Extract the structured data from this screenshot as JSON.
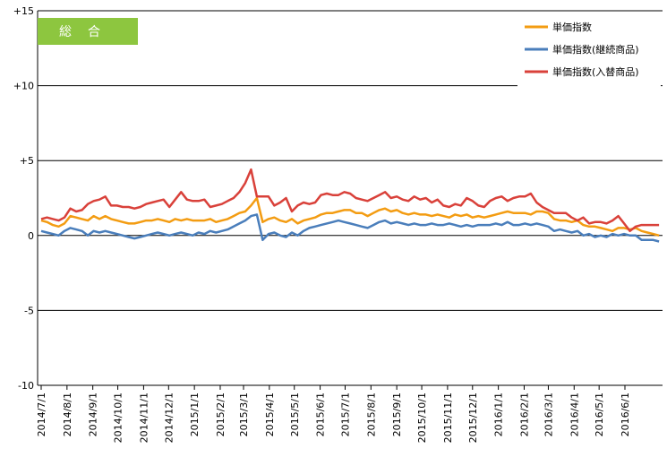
{
  "chart_data": {
    "type": "line",
    "badge": "総合",
    "badge_color": "#8dc63f",
    "ylim": [
      -10,
      15
    ],
    "yticks": [
      15,
      10,
      5,
      0,
      -5,
      -10
    ],
    "ytick_labels": [
      "+15",
      "+10",
      "+5",
      "0",
      "-5",
      "-10"
    ],
    "grid": true,
    "legend_position": "top-right",
    "x_start": "2014-07-01",
    "x_tick_labels": [
      "2014/7/1",
      "2014/8/1",
      "2014/9/1",
      "2014/10/1",
      "2014/11/1",
      "2014/12/1",
      "2015/1/1",
      "2015/2/1",
      "2015/3/1",
      "2015/4/1",
      "2015/5/1",
      "2015/6/1",
      "2015/7/1",
      "2015/8/1",
      "2015/9/1",
      "2015/10/1",
      "2015/11/1",
      "2015/12/1",
      "2016/1/1",
      "2016/2/1",
      "2016/3/1",
      "2016/4/1",
      "2016/5/1",
      "2016/6/1"
    ],
    "series": [
      {
        "name": "単価指数",
        "color": "#f39c12",
        "values": [
          1.0,
          0.9,
          0.7,
          0.6,
          0.8,
          1.3,
          1.2,
          1.1,
          1.0,
          1.3,
          1.1,
          1.3,
          1.1,
          1.0,
          0.9,
          0.8,
          0.8,
          0.9,
          1.0,
          1.0,
          1.1,
          1.0,
          0.9,
          1.1,
          1.0,
          1.1,
          1.0,
          1.0,
          1.0,
          1.1,
          0.9,
          1.0,
          1.1,
          1.3,
          1.5,
          1.6,
          2.0,
          2.5,
          0.9,
          1.1,
          1.2,
          1.0,
          0.9,
          1.1,
          0.8,
          1.0,
          1.1,
          1.2,
          1.4,
          1.5,
          1.5,
          1.6,
          1.7,
          1.7,
          1.5,
          1.5,
          1.3,
          1.5,
          1.7,
          1.8,
          1.6,
          1.7,
          1.5,
          1.4,
          1.5,
          1.4,
          1.4,
          1.3,
          1.4,
          1.3,
          1.2,
          1.4,
          1.3,
          1.4,
          1.2,
          1.3,
          1.2,
          1.3,
          1.4,
          1.5,
          1.6,
          1.5,
          1.5,
          1.5,
          1.4,
          1.6,
          1.6,
          1.5,
          1.1,
          1.0,
          1.0,
          0.9,
          1.0,
          0.7,
          0.6,
          0.6,
          0.5,
          0.4,
          0.3,
          0.5,
          0.5,
          0.4,
          0.5,
          0.3,
          0.2,
          0.1,
          0.0
        ]
      },
      {
        "name": "単価指数(継続商品)",
        "color": "#4a7ebb",
        "values": [
          0.3,
          0.2,
          0.1,
          0.0,
          0.3,
          0.5,
          0.4,
          0.3,
          0.0,
          0.3,
          0.2,
          0.3,
          0.2,
          0.1,
          0.0,
          -0.1,
          -0.2,
          -0.1,
          0.0,
          0.1,
          0.2,
          0.1,
          0.0,
          0.1,
          0.2,
          0.1,
          0.0,
          0.2,
          0.1,
          0.3,
          0.2,
          0.3,
          0.4,
          0.6,
          0.8,
          1.0,
          1.3,
          1.4,
          -0.3,
          0.1,
          0.2,
          0.0,
          -0.1,
          0.2,
          0.0,
          0.3,
          0.5,
          0.6,
          0.7,
          0.8,
          0.9,
          1.0,
          0.9,
          0.8,
          0.7,
          0.6,
          0.5,
          0.7,
          0.9,
          1.0,
          0.8,
          0.9,
          0.8,
          0.7,
          0.8,
          0.7,
          0.7,
          0.8,
          0.7,
          0.7,
          0.8,
          0.7,
          0.6,
          0.7,
          0.6,
          0.7,
          0.7,
          0.7,
          0.8,
          0.7,
          0.9,
          0.7,
          0.7,
          0.8,
          0.7,
          0.8,
          0.7,
          0.6,
          0.3,
          0.4,
          0.3,
          0.2,
          0.3,
          0.0,
          0.1,
          -0.1,
          0.0,
          -0.1,
          0.1,
          0.0,
          0.1,
          0.0,
          0.0,
          -0.3,
          -0.3,
          -0.3,
          -0.4
        ]
      },
      {
        "name": "単価指数(入替商品)",
        "color": "#d9413a",
        "values": [
          1.1,
          1.2,
          1.1,
          1.0,
          1.2,
          1.8,
          1.6,
          1.7,
          2.1,
          2.3,
          2.4,
          2.6,
          2.0,
          2.0,
          1.9,
          1.9,
          1.8,
          1.9,
          2.1,
          2.2,
          2.3,
          2.4,
          1.9,
          2.4,
          2.9,
          2.4,
          2.3,
          2.3,
          2.4,
          1.9,
          2.0,
          2.1,
          2.3,
          2.5,
          2.9,
          3.5,
          4.4,
          2.6,
          2.6,
          2.6,
          2.0,
          2.2,
          2.5,
          1.6,
          2.0,
          2.2,
          2.1,
          2.2,
          2.7,
          2.8,
          2.7,
          2.7,
          2.9,
          2.8,
          2.5,
          2.4,
          2.3,
          2.5,
          2.7,
          2.9,
          2.5,
          2.6,
          2.4,
          2.3,
          2.6,
          2.4,
          2.5,
          2.2,
          2.4,
          2.0,
          1.9,
          2.1,
          2.0,
          2.5,
          2.3,
          2.0,
          1.9,
          2.3,
          2.5,
          2.6,
          2.3,
          2.5,
          2.6,
          2.6,
          2.8,
          2.2,
          1.9,
          1.7,
          1.5,
          1.5,
          1.5,
          1.2,
          1.0,
          1.2,
          0.8,
          0.9,
          0.9,
          0.8,
          1.0,
          1.3,
          0.8,
          0.3,
          0.6,
          0.7,
          0.7,
          0.7,
          0.7
        ]
      }
    ]
  }
}
